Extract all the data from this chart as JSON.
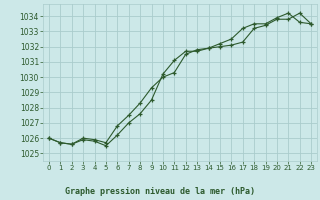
{
  "title": "Graphe pression niveau de la mer (hPa)",
  "bg_color": "#cce8e8",
  "grid_color": "#aacccc",
  "line_color": "#2d5a2d",
  "ylim": [
    1024.5,
    1034.8
  ],
  "xlim": [
    -0.5,
    23.5
  ],
  "yticks": [
    1025,
    1026,
    1027,
    1028,
    1029,
    1030,
    1031,
    1032,
    1033,
    1034
  ],
  "xticks": [
    0,
    1,
    2,
    3,
    4,
    5,
    6,
    7,
    8,
    9,
    10,
    11,
    12,
    13,
    14,
    15,
    16,
    17,
    18,
    19,
    20,
    21,
    22,
    23
  ],
  "series1": {
    "x": [
      0,
      1,
      2,
      3,
      4,
      5,
      6,
      7,
      8,
      9,
      10,
      11,
      12,
      13,
      14,
      15,
      16,
      17,
      18,
      19,
      20,
      21,
      22,
      23
    ],
    "y": [
      1026.0,
      1025.7,
      1025.6,
      1025.9,
      1025.8,
      1025.5,
      1026.2,
      1027.0,
      1027.6,
      1028.5,
      1030.2,
      1031.1,
      1031.7,
      1031.7,
      1031.9,
      1032.0,
      1032.1,
      1032.3,
      1033.2,
      1033.4,
      1033.8,
      1033.8,
      1034.2,
      1033.5
    ]
  },
  "series2": {
    "x": [
      0,
      1,
      2,
      3,
      4,
      5,
      6,
      7,
      8,
      9,
      10,
      11,
      12,
      13,
      14,
      15,
      16,
      17,
      18,
      19,
      20,
      21,
      22,
      23
    ],
    "y": [
      1026.0,
      1025.7,
      1025.6,
      1026.0,
      1025.9,
      1025.7,
      1026.8,
      1027.5,
      1028.3,
      1029.3,
      1030.0,
      1030.3,
      1031.5,
      1031.8,
      1031.9,
      1032.2,
      1032.5,
      1033.2,
      1033.5,
      1033.5,
      1033.9,
      1034.2,
      1033.6,
      1033.5
    ]
  }
}
